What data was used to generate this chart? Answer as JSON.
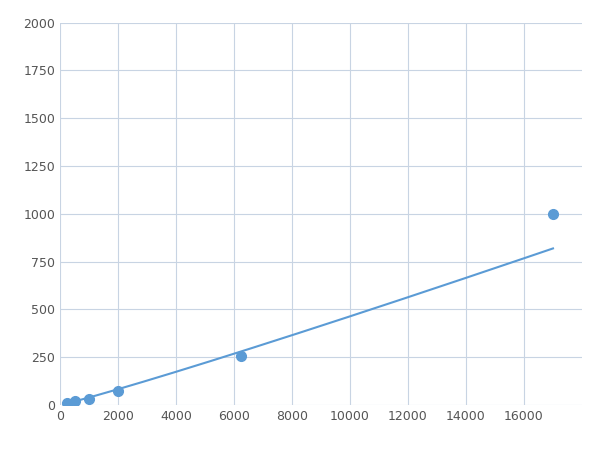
{
  "x": [
    233,
    500,
    1000,
    2000,
    6250,
    17000
  ],
  "y": [
    10,
    20,
    30,
    75,
    255,
    1000
  ],
  "line_color": "#5b9bd5",
  "marker_color": "#5b9bd5",
  "marker_size": 7,
  "xlim": [
    0,
    18000
  ],
  "ylim": [
    0,
    2000
  ],
  "xticks": [
    0,
    2000,
    4000,
    6000,
    8000,
    10000,
    12000,
    14000,
    16000
  ],
  "yticks": [
    0,
    250,
    500,
    750,
    1000,
    1250,
    1500,
    1750,
    2000
  ],
  "grid_color": "#c8d4e3",
  "background_color": "#ffffff",
  "figsize": [
    6.0,
    4.5
  ],
  "dpi": 100
}
